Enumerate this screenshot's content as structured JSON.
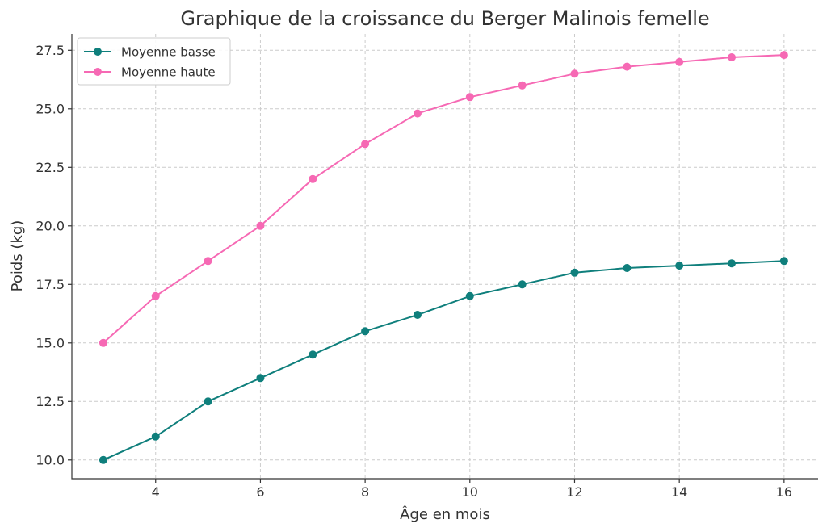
{
  "chart_data": {
    "type": "line",
    "title": "Graphique de la croissance du Berger Malinois femelle",
    "xlabel": "Âge en mois",
    "ylabel": "Poids (kg)",
    "x": [
      3,
      4,
      5,
      6,
      7,
      8,
      9,
      10,
      11,
      12,
      13,
      14,
      15,
      16
    ],
    "xlim": [
      2.4,
      16.65
    ],
    "ylim": [
      9.2,
      28.2
    ],
    "xticks": [
      4,
      6,
      8,
      10,
      12,
      14,
      16
    ],
    "xtick_labels": [
      "4",
      "6",
      "8",
      "10",
      "12",
      "14",
      "16"
    ],
    "yticks": [
      10.0,
      12.5,
      15.0,
      17.5,
      20.0,
      22.5,
      25.0,
      27.5
    ],
    "ytick_labels": [
      "10.0",
      "12.5",
      "15.0",
      "17.5",
      "20.0",
      "22.5",
      "25.0",
      "27.5"
    ],
    "grid": true,
    "legend_position": "top-left",
    "series": [
      {
        "name": "Moyenne basse",
        "color": "#0f7f7c",
        "values": [
          10.0,
          11.0,
          12.5,
          13.5,
          14.5,
          15.5,
          16.2,
          17.0,
          17.5,
          18.0,
          18.2,
          18.3,
          18.4,
          18.5
        ]
      },
      {
        "name": "Moyenne haute",
        "color": "#f669b4",
        "values": [
          15.0,
          17.0,
          18.5,
          20.0,
          22.0,
          23.5,
          24.8,
          25.5,
          26.0,
          26.5,
          26.8,
          27.0,
          27.2,
          27.3
        ]
      }
    ]
  }
}
